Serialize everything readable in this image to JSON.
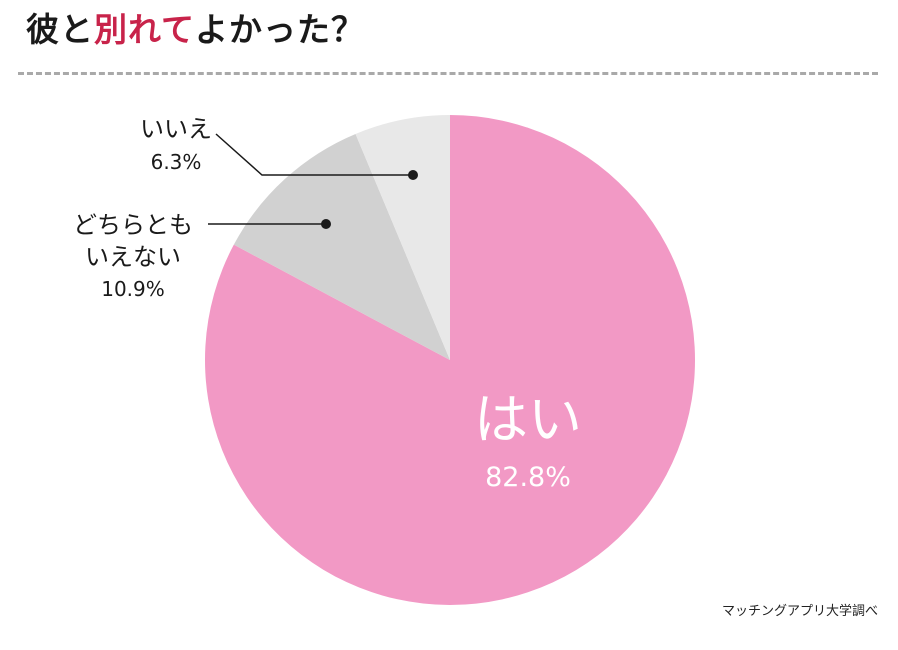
{
  "title": {
    "before": "彼と",
    "accent": "別れて",
    "after": "よかった？",
    "accent_color": "#c8234a"
  },
  "source": "マッチングアプリ大学調べ",
  "chart_data": {
    "type": "pie",
    "title": "彼と別れてよかった？",
    "slices": [
      {
        "label": "はい",
        "label_lines": [
          "はい"
        ],
        "value": 82.8,
        "value_label": "82.8%",
        "color": "#f299c5"
      },
      {
        "label": "どちらともいえない",
        "label_lines": [
          "どちらとも",
          "いえない"
        ],
        "value": 10.9,
        "value_label": "10.9%",
        "color": "#d1d1d1"
      },
      {
        "label": "いいえ",
        "label_lines": [
          "いいえ"
        ],
        "value": 6.3,
        "value_label": "6.3%",
        "color": "#e8e8e8"
      }
    ],
    "start_angle": "12 o'clock",
    "direction": "clockwise",
    "legend": "none"
  }
}
